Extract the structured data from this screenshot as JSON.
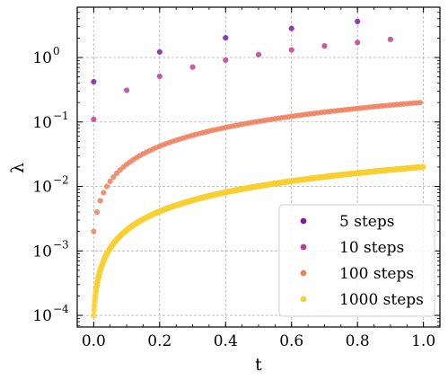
{
  "chart_data": {
    "type": "scatter",
    "title": "",
    "xlabel": "t",
    "ylabel": "λ",
    "xlim": [
      -0.05,
      1.05
    ],
    "ylim_log10": [
      -4.18,
      0.78
    ],
    "yscale": "log",
    "grid": true,
    "legend_position": "lower-right",
    "xticks": [
      {
        "value": 0.0,
        "label": "0.0"
      },
      {
        "value": 0.2,
        "label": "0.2"
      },
      {
        "value": 0.4,
        "label": "0.4"
      },
      {
        "value": 0.6,
        "label": "0.6"
      },
      {
        "value": 0.8,
        "label": "0.8"
      },
      {
        "value": 1.0,
        "label": "1.0"
      }
    ],
    "yticks": [
      {
        "exp": -4,
        "label": "10",
        "sup": "−4"
      },
      {
        "exp": -3,
        "label": "10",
        "sup": "−3"
      },
      {
        "exp": -2,
        "label": "10",
        "sup": "−2"
      },
      {
        "exp": -1,
        "label": "10",
        "sup": "−1"
      },
      {
        "exp": 0,
        "label": "10",
        "sup": "0"
      }
    ],
    "series": [
      {
        "name": "5 steps",
        "color": "#7b1fa2",
        "x": [
          0.0,
          0.2,
          0.4,
          0.6,
          0.8
        ],
        "y": [
          0.42,
          1.22,
          2.02,
          2.82,
          3.62
        ]
      },
      {
        "name": "10 steps",
        "color": "#bb3f97",
        "x": [
          0.0,
          0.1,
          0.2,
          0.3,
          0.4,
          0.5,
          0.6,
          0.7,
          0.8,
          0.9
        ],
        "y": [
          0.11,
          0.31,
          0.51,
          0.71,
          0.91,
          1.11,
          1.31,
          1.51,
          1.71,
          1.91
        ]
      },
      {
        "name": "100 steps",
        "color": "#ee7f5d",
        "n": 100,
        "y_start": 0.002,
        "y_step": 0.002
      },
      {
        "name": "1000 steps",
        "color": "#f9d030",
        "n": 1000,
        "y_start": 0.0001,
        "y_step": 2e-05
      }
    ]
  }
}
